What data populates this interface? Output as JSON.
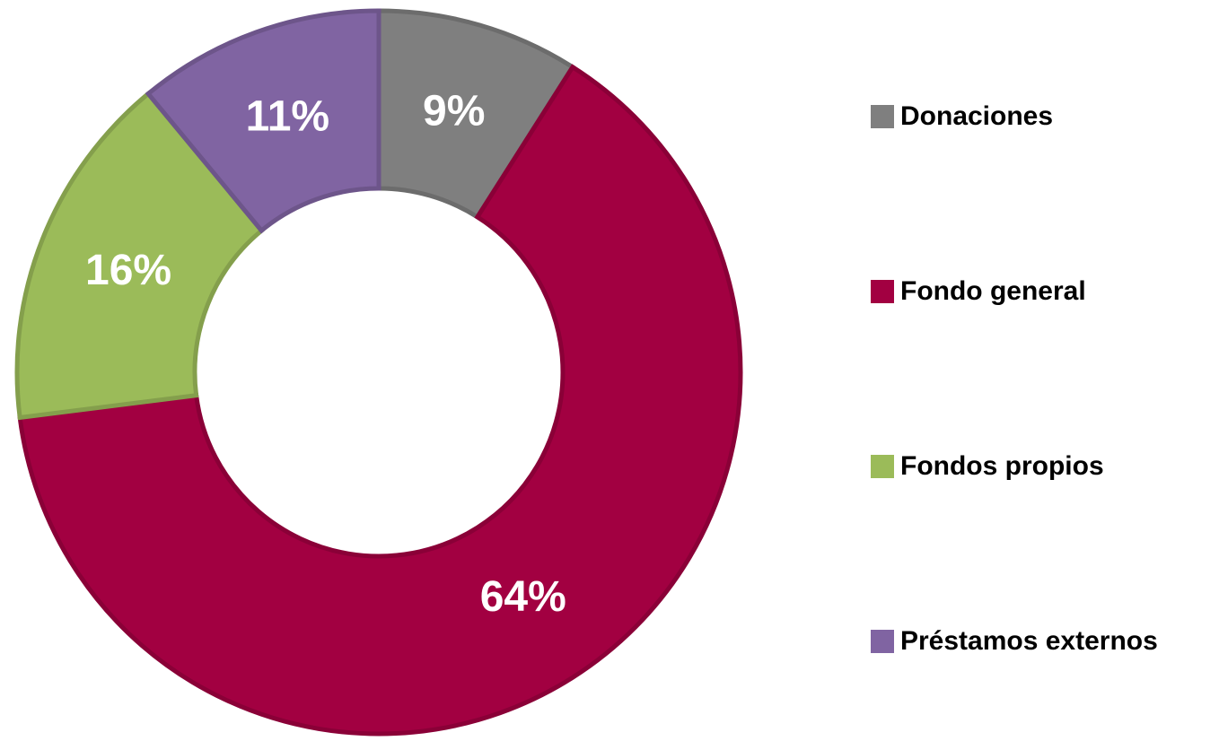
{
  "chart_data": {
    "type": "donut",
    "categories": [
      "Donaciones",
      "Fondo general",
      "Fondos propios",
      "Préstamos externos"
    ],
    "values": [
      9,
      64,
      16,
      11
    ],
    "value_labels": [
      "9%",
      "64%",
      "16%",
      "11%"
    ],
    "colors": [
      "#7f7f7f",
      "#a20041",
      "#9bbb59",
      "#8064a2"
    ],
    "legend": "right"
  }
}
